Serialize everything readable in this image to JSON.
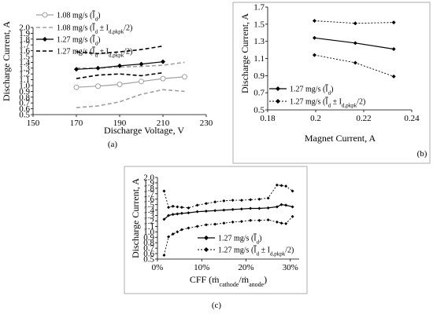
{
  "chart_data": [
    {
      "type": "line",
      "panel": "(a)",
      "xlabel": "Discharge Voltage, V",
      "ylabel": "Discharge Current, A",
      "xlim": [
        150,
        230
      ],
      "ylim": [
        0.5,
        2.0
      ],
      "xticks": [
        "150",
        "170",
        "190",
        "210",
        "230"
      ],
      "yticks": [
        "0.5",
        "0.6",
        "0.7",
        "0.8",
        "0.9",
        "1.0",
        "1.1",
        "1.2",
        "1.3",
        "1.4",
        "1.5",
        "1.6",
        "1.7",
        "1.8",
        "1.9",
        "2.0"
      ],
      "legend": [
        "1.08 mg/s (Īd)",
        "1.08 mg/s (Īd ± Id,pkpk/2)",
        "1.27 mg/s (Īd)",
        "1.27 mg/s (Īd ± Id,pkpk/2)"
      ],
      "legend_placement": "top-left",
      "series": [
        {
          "name": "1.08 mg/s (Īd)",
          "style": "gray-solid-open-circle",
          "x": [
            170,
            180,
            190,
            200,
            210,
            220
          ],
          "values": [
            0.97,
            0.99,
            1.02,
            1.07,
            1.12,
            1.15
          ]
        },
        {
          "name": "1.08 mg/s (Īd + Id,pkpk/2)",
          "style": "gray-dashed",
          "x": [
            170,
            180,
            190,
            200,
            210,
            220
          ],
          "values": [
            1.3,
            1.3,
            1.32,
            1.33,
            1.35,
            1.4
          ]
        },
        {
          "name": "1.08 mg/s (Īd − Id,pkpk/2)",
          "style": "gray-dashed",
          "x": [
            170,
            180,
            190,
            200,
            210,
            220
          ],
          "values": [
            0.62,
            0.65,
            0.72,
            0.85,
            0.93,
            0.9
          ]
        },
        {
          "name": "1.27 mg/s (Īd)",
          "style": "black-solid-diamond",
          "x": [
            170,
            180,
            190,
            200,
            210
          ],
          "values": [
            1.28,
            1.3,
            1.34,
            1.37,
            1.41
          ]
        },
        {
          "name": "1.27 mg/s (Īd + Id,pkpk/2)",
          "style": "black-dashed",
          "x": [
            170,
            180,
            190,
            200,
            210
          ],
          "values": [
            1.58,
            1.55,
            1.58,
            1.62,
            1.68
          ]
        },
        {
          "name": "1.27 mg/s (Īd − Id,pkpk/2)",
          "style": "black-dashed",
          "x": [
            170,
            180,
            190,
            200,
            210
          ],
          "values": [
            1.12,
            1.18,
            1.2,
            1.17,
            1.22
          ]
        }
      ]
    },
    {
      "type": "line",
      "panel": "(b)",
      "xlabel": "Magnet Current, A",
      "ylabel": "Discharge Current, A",
      "xlim": [
        0.18,
        0.24
      ],
      "ylim": [
        0.5,
        1.7
      ],
      "xticks": [
        "0.18",
        "0.2",
        "0.22",
        "0.24"
      ],
      "yticks": [
        "0.5",
        "0.7",
        "0.9",
        "1.1",
        "1.3",
        "1.5",
        "1.7"
      ],
      "legend": [
        "1.27 mg/s (Īd)",
        "1.27 mg/s (Īd ± Id,pkpk/2)"
      ],
      "legend_placement": "bottom-left",
      "series": [
        {
          "name": "1.27 mg/s (Īd)",
          "style": "black-solid-diamond",
          "x": [
            0.1995,
            0.2165,
            0.2325
          ],
          "values": [
            1.34,
            1.28,
            1.21
          ]
        },
        {
          "name": "1.27 mg/s (Īd + Id,pkpk/2)",
          "style": "black-dotted-diamond",
          "x": [
            0.1995,
            0.2165,
            0.2325
          ],
          "values": [
            1.54,
            1.51,
            1.52
          ]
        },
        {
          "name": "1.27 mg/s (Īd − Id,pkpk/2)",
          "style": "black-dotted-diamond",
          "x": [
            0.1995,
            0.2165,
            0.2325
          ],
          "values": [
            1.14,
            1.05,
            0.89
          ]
        }
      ]
    },
    {
      "type": "line",
      "panel": "(c)",
      "xlabel": "CFF (ṁcathode/ṁanode)",
      "ylabel": "Discharge Current, A",
      "xlim": [
        0,
        32
      ],
      "ylim": [
        0.5,
        2.0
      ],
      "xticks": [
        "0%",
        "10%",
        "20%",
        "30%"
      ],
      "yticks": [
        "0.5",
        "0.6",
        "0.7",
        "0.8",
        "0.9",
        "1.0",
        "1.1",
        "1.2",
        "1.3",
        "1.4",
        "1.5",
        "1.6",
        "1.7",
        "1.8",
        "1.9",
        "2.0"
      ],
      "legend": [
        "1.27 mg/s (Īd)",
        "1.27 mg/s (Īd ± Id,pkpk/2)"
      ],
      "legend_placement": "bottom-right",
      "series": [
        {
          "name": "1.27 mg/s (Īd)",
          "style": "black-solid-diamond",
          "x": [
            1.5,
            2.5,
            3.5,
            4.5,
            5.5,
            7,
            9,
            11,
            13,
            15,
            17,
            19,
            21,
            23,
            25,
            27,
            28,
            29,
            30.5
          ],
          "values": [
            1.23,
            1.3,
            1.32,
            1.33,
            1.34,
            1.35,
            1.37,
            1.38,
            1.39,
            1.4,
            1.41,
            1.42,
            1.43,
            1.43,
            1.44,
            1.46,
            1.5,
            1.49,
            1.46
          ]
        },
        {
          "name": "1.27 mg/s (Īd + Id,pkpk/2)",
          "style": "black-dotted-diamond",
          "x": [
            1.5,
            2.5,
            3.5,
            4.5,
            5.5,
            7,
            9,
            11,
            13,
            15,
            17,
            19,
            21,
            23,
            25,
            27,
            28,
            29,
            30.5
          ],
          "values": [
            1.75,
            1.45,
            1.47,
            1.46,
            1.45,
            1.44,
            1.49,
            1.52,
            1.55,
            1.57,
            1.58,
            1.58,
            1.59,
            1.6,
            1.62,
            1.86,
            1.85,
            1.84,
            1.75
          ]
        },
        {
          "name": "1.27 mg/s (Īd − Id,pkpk/2)",
          "style": "black-dotted-diamond",
          "x": [
            1.5,
            2.5,
            3.5,
            4.5,
            5.5,
            7,
            9,
            11,
            13,
            15,
            17,
            19,
            21,
            23,
            25,
            27,
            28,
            29,
            30.5
          ],
          "values": [
            0.57,
            0.91,
            0.96,
            1.0,
            1.04,
            1.07,
            1.1,
            1.13,
            1.14,
            1.16,
            1.18,
            1.19,
            1.21,
            1.21,
            1.22,
            1.18,
            1.16,
            1.15,
            1.28
          ]
        }
      ]
    }
  ],
  "labels": {
    "a": "(a)",
    "b": "(b)",
    "c": "(c)"
  }
}
